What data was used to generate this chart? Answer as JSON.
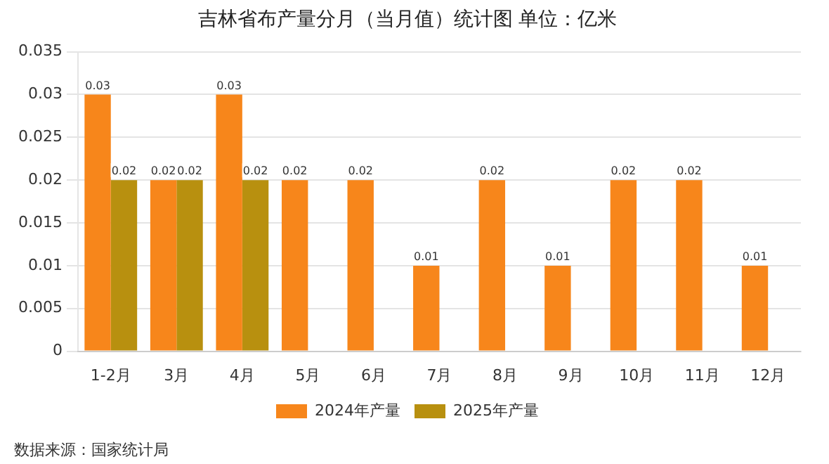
{
  "chart_data": {
    "type": "bar",
    "title": "吉林省布产量分月（当月值）统计图 单位：亿米",
    "categories": [
      "1-2月",
      "3月",
      "4月",
      "5月",
      "6月",
      "7月",
      "8月",
      "9月",
      "10月",
      "11月",
      "12月"
    ],
    "series": [
      {
        "name": "2024年产量",
        "color": "#f7861b",
        "values": [
          0.03,
          0.02,
          0.03,
          0.02,
          0.02,
          0.01,
          0.02,
          0.01,
          0.02,
          0.02,
          0.01
        ]
      },
      {
        "name": "2025年产量",
        "color": "#b8900f",
        "values": [
          0.02,
          0.02,
          0.02,
          null,
          null,
          null,
          null,
          null,
          null,
          null,
          null
        ]
      }
    ],
    "ylim": [
      0,
      0.035
    ],
    "yticks": [
      0,
      0.005,
      0.01,
      0.015,
      0.02,
      0.025,
      0.03,
      0.035
    ],
    "grid": "y",
    "legend": "bottom",
    "data_labels": true,
    "annotations": [
      "数据来源：国家统计局"
    ]
  }
}
